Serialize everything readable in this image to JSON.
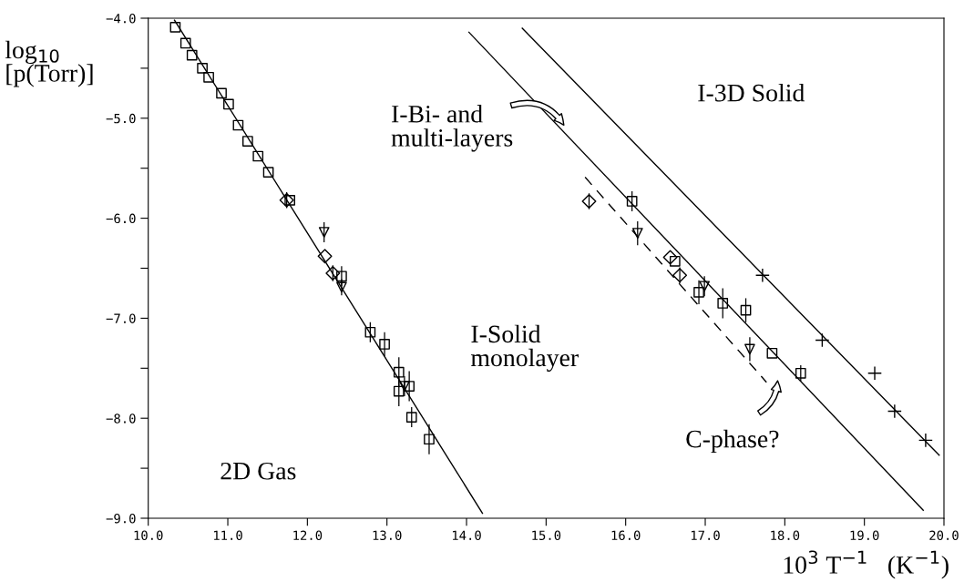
{
  "chart_data": {
    "type": "scatter",
    "xlabel": "10$^{3}$ T$^{−1}$   (K$^{−1}$)",
    "ylabel": "log$_{10}$\n[p(Torr)]",
    "xlim": [
      10.0,
      20.0
    ],
    "ylim": [
      -9.0,
      -4.0
    ],
    "xticks": [
      {
        "value": 10,
        "label": "10.0"
      },
      {
        "value": 11,
        "label": "11.0"
      },
      {
        "value": 12,
        "label": "12.0"
      },
      {
        "value": 13,
        "label": "13.0"
      },
      {
        "value": 14,
        "label": "14.0"
      },
      {
        "value": 15,
        "label": "15.0"
      },
      {
        "value": 16,
        "label": "16.0"
      },
      {
        "value": 17,
        "label": "17.0"
      },
      {
        "value": 18,
        "label": "18.0"
      },
      {
        "value": 19,
        "label": "19.0"
      },
      {
        "value": 20,
        "label": "20.0"
      }
    ],
    "yticks": [
      {
        "value": -4,
        "label": "−4.0"
      },
      {
        "value": -4.5,
        "label": null
      },
      {
        "value": -5,
        "label": "−5.0"
      },
      {
        "value": -5.5,
        "label": null
      },
      {
        "value": -6,
        "label": "−6.0"
      },
      {
        "value": -6.5,
        "label": null
      },
      {
        "value": -7,
        "label": "−7.0"
      },
      {
        "value": -7.5,
        "label": null
      },
      {
        "value": -8,
        "label": "−8.0"
      },
      {
        "value": -8.5,
        "label": null
      },
      {
        "value": -9,
        "label": "−9.0"
      }
    ],
    "grid": false,
    "annotations": [
      "I-Bi- and\nmulti-layers",
      "I-3D Solid",
      "I-Solid\nmonolayer",
      "C-phase?",
      "2D Gas"
    ],
    "series": [
      {
        "type": "line",
        "color": "#000000",
        "line_style": "solid",
        "marker": "none",
        "x": [
          10.33,
          14.2
        ],
        "values": [
          -4.02,
          -8.95
        ]
      },
      {
        "type": "line",
        "color": "#000000",
        "line_style": "solid",
        "marker": "none",
        "x": [
          14.03,
          19.74
        ],
        "values": [
          -4.14,
          -8.92
        ]
      },
      {
        "type": "line",
        "color": "#000000",
        "line_style": "solid",
        "marker": "none",
        "x": [
          14.7,
          19.94
        ],
        "values": [
          -4.1,
          -8.37
        ]
      },
      {
        "type": "line",
        "color": "#000000",
        "line_style": "dashed",
        "marker": "none",
        "x": [
          15.49,
          17.77
        ],
        "values": [
          -5.59,
          -7.64
        ]
      },
      {
        "type": "scatter",
        "color": "#000000",
        "marker": "square",
        "x": [
          10.34,
          10.47,
          10.55,
          10.68,
          10.76,
          10.92,
          11.01,
          11.13,
          11.25,
          11.38,
          11.51,
          11.78,
          12.43,
          12.79,
          12.97,
          13.15,
          13.15,
          13.28,
          13.31,
          13.53,
          16.08,
          16.62,
          16.92,
          17.22,
          17.51,
          17.84,
          18.2
        ],
        "values": [
          -4.09,
          -4.25,
          -4.37,
          -4.5,
          -4.59,
          -4.75,
          -4.86,
          -5.07,
          -5.23,
          -5.38,
          -5.54,
          -5.82,
          -6.58,
          -7.14,
          -7.26,
          -7.54,
          -7.73,
          -7.68,
          -7.99,
          -8.21,
          -5.83,
          -6.43,
          -6.74,
          -6.85,
          -6.92,
          -7.35,
          -7.55
        ],
        "errors": [
          null,
          null,
          null,
          null,
          null,
          null,
          null,
          null,
          null,
          null,
          null,
          null,
          0.1,
          0.1,
          0.12,
          0.15,
          0.15,
          0.15,
          0.1,
          0.15,
          0.1,
          null,
          0.12,
          0.15,
          0.12,
          null,
          0.08
        ]
      },
      {
        "type": "scatter",
        "color": "#000000",
        "marker": "diamond",
        "x": [
          11.74,
          12.22,
          12.32,
          15.54,
          16.56,
          16.68
        ],
        "values": [
          -5.82,
          -6.38,
          -6.55,
          -5.83,
          -6.39,
          -6.57
        ],
        "errors": [
          0.08,
          null,
          0.08,
          0.08,
          null,
          0.08
        ]
      },
      {
        "type": "scatter",
        "color": "#000000",
        "marker": "triangle",
        "x": [
          12.21,
          12.43,
          13.22,
          16.15,
          16.99,
          17.56
        ],
        "values": [
          -6.14,
          -6.69,
          -7.68,
          -6.15,
          -6.68,
          -7.31
        ],
        "errors": [
          0.1,
          0.08,
          0.1,
          0.12,
          0.1,
          0.12
        ]
      },
      {
        "type": "scatter",
        "color": "#000000",
        "marker": "cross",
        "x": [
          17.72,
          18.47,
          19.13,
          19.38,
          19.77
        ],
        "values": [
          -6.57,
          -7.22,
          -7.55,
          -7.93,
          -8.22
        ]
      }
    ]
  }
}
